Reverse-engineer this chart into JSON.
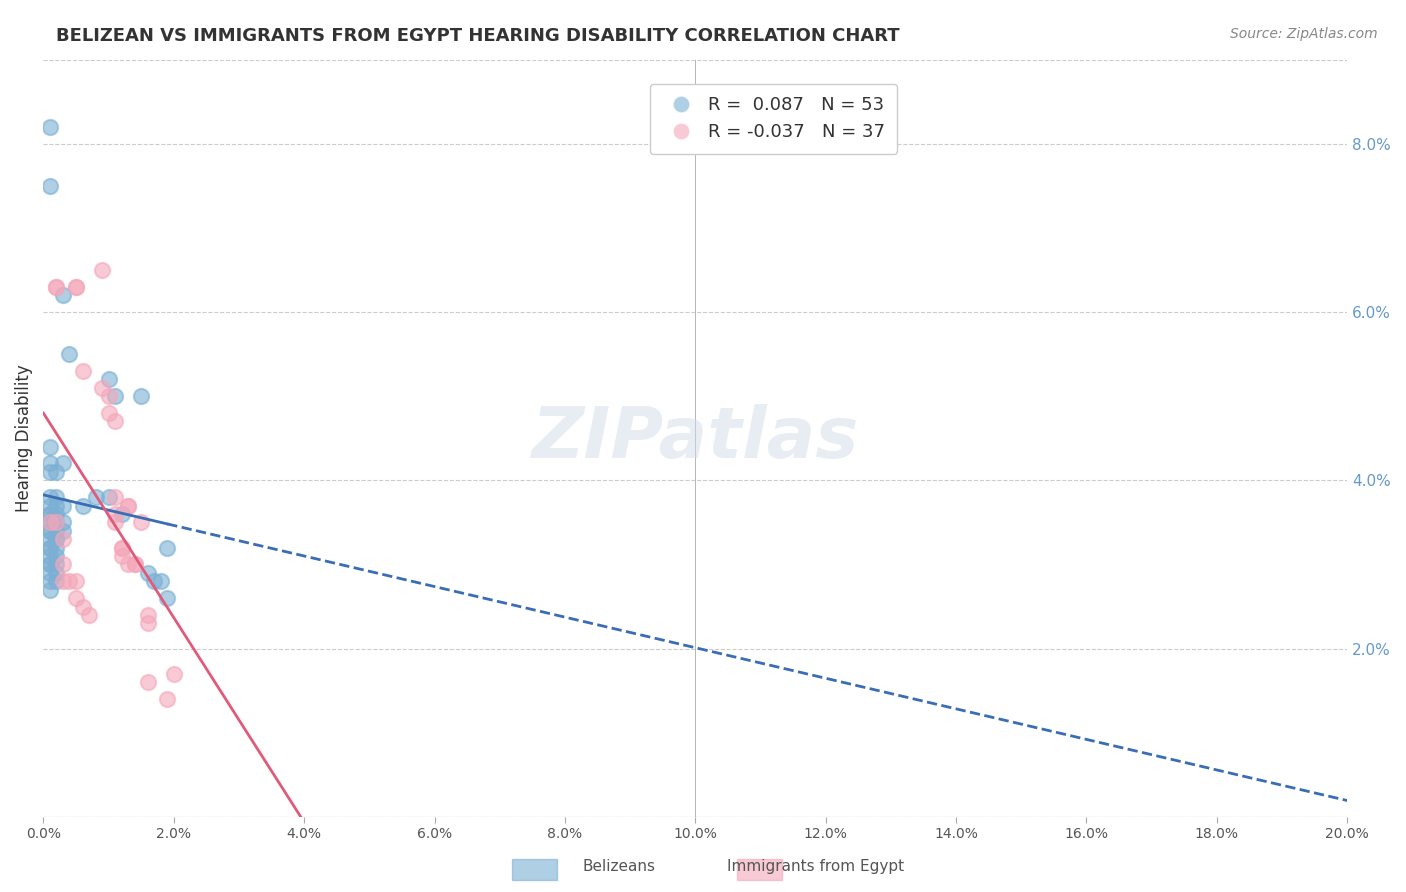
{
  "title": "BELIZEAN VS IMMIGRANTS FROM EGYPT HEARING DISABILITY CORRELATION CHART",
  "source": "Source: ZipAtlas.com",
  "xlabel": "",
  "ylabel": "Hearing Disability",
  "xlim": [
    0.0,
    0.2
  ],
  "ylim": [
    0.0,
    0.09
  ],
  "xticks": [
    0.0,
    0.02,
    0.04,
    0.06,
    0.08,
    0.1,
    0.12,
    0.14,
    0.16,
    0.18,
    0.2
  ],
  "yticks": [
    0.0,
    0.02,
    0.04,
    0.06,
    0.08
  ],
  "ytick_labels": [
    "",
    "2.0%",
    "4.0%",
    "6.0%",
    "8.0%"
  ],
  "xtick_labels": [
    "0.0%",
    "2.0%",
    "4.0%",
    "6.0%",
    "8.0%",
    "10.0%",
    "12.0%",
    "14.0%",
    "16.0%",
    "18.0%",
    "20.0%"
  ],
  "blue_R": 0.087,
  "blue_N": 53,
  "pink_R": -0.037,
  "pink_N": 37,
  "blue_color": "#7bafd4",
  "pink_color": "#f4a7b9",
  "blue_line_color": "#3a6db5",
  "pink_line_color": "#e05a7a",
  "watermark": "ZIPatlas",
  "blue_points": [
    [
      0.001,
      0.082
    ],
    [
      0.001,
      0.075
    ],
    [
      0.003,
      0.062
    ],
    [
      0.004,
      0.055
    ],
    [
      0.001,
      0.044
    ],
    [
      0.001,
      0.042
    ],
    [
      0.001,
      0.041
    ],
    [
      0.002,
      0.041
    ],
    [
      0.001,
      0.038
    ],
    [
      0.002,
      0.038
    ],
    [
      0.001,
      0.037
    ],
    [
      0.002,
      0.037
    ],
    [
      0.003,
      0.037
    ],
    [
      0.001,
      0.036
    ],
    [
      0.001,
      0.036
    ],
    [
      0.002,
      0.036
    ],
    [
      0.001,
      0.035
    ],
    [
      0.001,
      0.035
    ],
    [
      0.002,
      0.035
    ],
    [
      0.003,
      0.035
    ],
    [
      0.001,
      0.034
    ],
    [
      0.001,
      0.034
    ],
    [
      0.002,
      0.034
    ],
    [
      0.003,
      0.034
    ],
    [
      0.001,
      0.033
    ],
    [
      0.002,
      0.033
    ],
    [
      0.002,
      0.033
    ],
    [
      0.001,
      0.032
    ],
    [
      0.001,
      0.032
    ],
    [
      0.002,
      0.032
    ],
    [
      0.001,
      0.031
    ],
    [
      0.002,
      0.031
    ],
    [
      0.001,
      0.03
    ],
    [
      0.001,
      0.03
    ],
    [
      0.002,
      0.03
    ],
    [
      0.001,
      0.029
    ],
    [
      0.002,
      0.029
    ],
    [
      0.001,
      0.028
    ],
    [
      0.002,
      0.028
    ],
    [
      0.001,
      0.027
    ],
    [
      0.003,
      0.042
    ],
    [
      0.006,
      0.037
    ],
    [
      0.008,
      0.038
    ],
    [
      0.01,
      0.038
    ],
    [
      0.01,
      0.052
    ],
    [
      0.011,
      0.05
    ],
    [
      0.012,
      0.036
    ],
    [
      0.015,
      0.05
    ],
    [
      0.016,
      0.029
    ],
    [
      0.017,
      0.028
    ],
    [
      0.018,
      0.028
    ],
    [
      0.019,
      0.032
    ],
    [
      0.019,
      0.026
    ]
  ],
  "pink_points": [
    [
      0.002,
      0.063
    ],
    [
      0.002,
      0.063
    ],
    [
      0.005,
      0.063
    ],
    [
      0.005,
      0.063
    ],
    [
      0.006,
      0.053
    ],
    [
      0.009,
      0.065
    ],
    [
      0.009,
      0.051
    ],
    [
      0.01,
      0.05
    ],
    [
      0.01,
      0.048
    ],
    [
      0.011,
      0.047
    ],
    [
      0.011,
      0.038
    ],
    [
      0.011,
      0.036
    ],
    [
      0.011,
      0.035
    ],
    [
      0.012,
      0.032
    ],
    [
      0.012,
      0.032
    ],
    [
      0.013,
      0.037
    ],
    [
      0.013,
      0.037
    ],
    [
      0.013,
      0.03
    ],
    [
      0.014,
      0.03
    ],
    [
      0.014,
      0.03
    ],
    [
      0.001,
      0.035
    ],
    [
      0.002,
      0.035
    ],
    [
      0.003,
      0.033
    ],
    [
      0.003,
      0.03
    ],
    [
      0.003,
      0.028
    ],
    [
      0.004,
      0.028
    ],
    [
      0.005,
      0.028
    ],
    [
      0.005,
      0.026
    ],
    [
      0.006,
      0.025
    ],
    [
      0.007,
      0.024
    ],
    [
      0.015,
      0.035
    ],
    [
      0.016,
      0.024
    ],
    [
      0.016,
      0.023
    ],
    [
      0.016,
      0.016
    ],
    [
      0.019,
      0.014
    ],
    [
      0.02,
      0.017
    ],
    [
      0.012,
      0.031
    ]
  ]
}
